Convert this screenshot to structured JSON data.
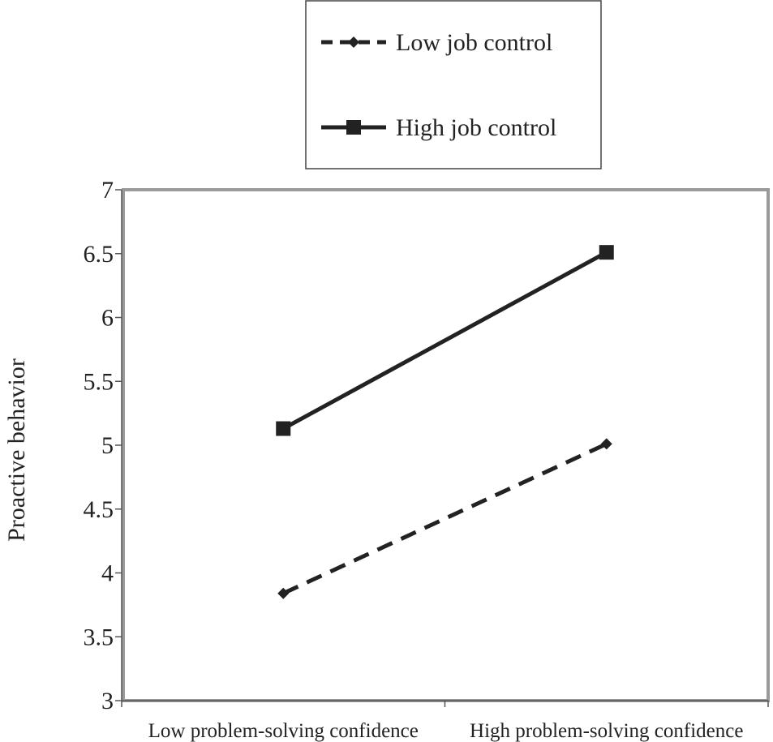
{
  "chart_data": {
    "type": "line",
    "ylabel": "Proactive behavior",
    "xlabel": "",
    "categories": [
      "Low problem-solving confidence",
      "High problem-solving confidence"
    ],
    "ylim": [
      3,
      7
    ],
    "yticks": [
      "3",
      "3.5",
      "4",
      "4.5",
      "5",
      "5.5",
      "6",
      "6.5",
      "7"
    ],
    "grid": false,
    "legend_position": "top",
    "series": [
      {
        "name": "Low job control",
        "values": [
          3.84,
          5.01
        ],
        "line_style": "dashed",
        "marker": "diamond",
        "color": "#222222"
      },
      {
        "name": "High job control",
        "values": [
          5.13,
          6.51
        ],
        "line_style": "solid",
        "marker": "square",
        "color": "#222222"
      }
    ]
  }
}
